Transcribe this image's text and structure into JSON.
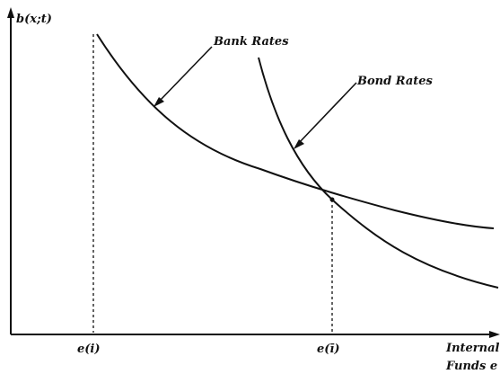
{
  "chart_data": {
    "type": "line",
    "ylabel": "b(x;t)",
    "xlabel_line1": "Internal",
    "xlabel_line2": "Funds e",
    "ticks": {
      "e_lower": "e(i)",
      "e_upper": "e(ī)"
    },
    "series": [
      {
        "name": "Bank Rates"
      },
      {
        "name": "Bond Rates"
      }
    ],
    "colors": {
      "stroke": "#111111"
    }
  }
}
